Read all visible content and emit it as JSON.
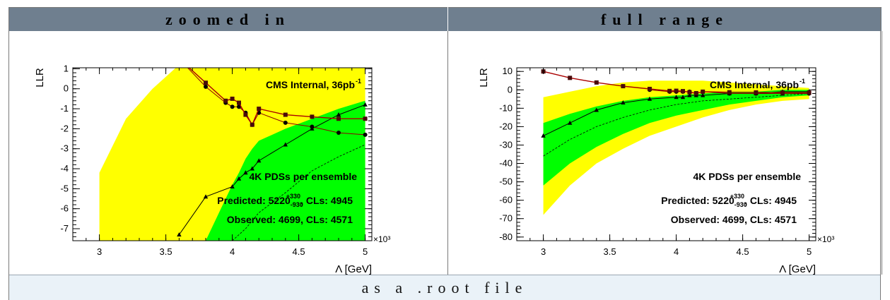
{
  "headers": {
    "left": "zoomed in",
    "right": "full range"
  },
  "footer": {
    "label": "as a .root file"
  },
  "colors": {
    "yellow": "#ffff00",
    "green": "#00ff00",
    "observed": "#aa0000",
    "marker": "#000000"
  },
  "chart_data": [
    {
      "type": "line",
      "panel": "zoomed in",
      "ylabel": "LLR",
      "xlabel": "Λ [GeV]",
      "x_multiplier": "×10³",
      "xlim": [
        2.8,
        5.05
      ],
      "ylim": [
        -7.6,
        1.05
      ],
      "x_ticks": [
        3,
        3.5,
        4,
        4.5,
        5
      ],
      "y_ticks": [
        1,
        0,
        -1,
        -2,
        -3,
        -4,
        -5,
        -6,
        -7
      ],
      "annotations": {
        "label": "CMS Internal, 36pb",
        "superscript": "-1",
        "ensemble": "4K PDSs per ensemble",
        "predicted_prefix": "Predicted: 5220",
        "predicted_up": "+330",
        "predicted_down": "-930",
        "predicted_suffix": ", CLs: 4945",
        "observed": "Observed: 4699, CLs: 4571"
      },
      "x": [
        3.0,
        3.2,
        3.4,
        3.6,
        3.8,
        3.95,
        4.0,
        4.05,
        4.1,
        4.15,
        4.2,
        4.4,
        4.6,
        4.8,
        5.0
      ],
      "series": [
        {
          "role": "band_yellow",
          "lower": [
            -7.6,
            -7.6,
            -7.6,
            -7.6,
            -7.6,
            -7.6,
            -7.6,
            -7.6,
            -7.6,
            -7.6,
            -7.6,
            -7.6,
            -7.6,
            -7.6,
            -7.6
          ],
          "upper": [
            -4.2,
            -1.5,
            0.0,
            1.2,
            1.2,
            1.2,
            1.2,
            1.2,
            1.2,
            1.2,
            1.2,
            1.2,
            1.2,
            1.2,
            1.2
          ]
        },
        {
          "role": "band_green",
          "lower": [
            -7.6,
            -7.6,
            -7.6,
            -7.6,
            -7.6,
            -7.6,
            -7.6,
            -7.6,
            -7.6,
            -7.6,
            -7.6,
            -7.6,
            -7.6,
            -7.6,
            -7.6
          ],
          "upper": [
            -7.6,
            -7.6,
            -7.6,
            -7.6,
            -7.6,
            -5.5,
            -4.8,
            -4.2,
            -3.5,
            -3.0,
            -2.6,
            -2.0,
            -1.5,
            -1.0,
            -0.6
          ]
        },
        {
          "role": "expected_dashed",
          "values": [
            null,
            null,
            null,
            null,
            null,
            null,
            -7.6,
            -7.3,
            -7.0,
            -6.6,
            -6.2,
            -5.2,
            -4.1,
            -3.4,
            -2.8
          ]
        },
        {
          "role": "triangle",
          "x": [
            3.6,
            3.8,
            4.0,
            4.05,
            4.1,
            4.15,
            4.2,
            4.4,
            4.6,
            4.8,
            5.0
          ],
          "values": [
            -7.3,
            -5.4,
            -4.9,
            -4.5,
            -4.2,
            -4.0,
            -3.6,
            -2.8,
            -2.0,
            -1.3,
            -0.8
          ]
        },
        {
          "role": "circle",
          "x": [
            3.6,
            3.8,
            3.95,
            4.0,
            4.05,
            4.1,
            4.15,
            4.2,
            4.4,
            4.6,
            4.8,
            5.0
          ],
          "values": [
            1.5,
            0.1,
            -0.7,
            -0.9,
            -0.9,
            -1.2,
            -1.8,
            -1.2,
            -1.7,
            -1.9,
            -2.2,
            -2.3
          ]
        },
        {
          "role": "observed_square",
          "x": [
            3.6,
            3.8,
            3.95,
            4.0,
            4.05,
            4.1,
            4.15,
            4.2,
            4.4,
            4.6,
            4.8,
            5.0
          ],
          "values": [
            1.5,
            0.3,
            -0.6,
            -0.5,
            -0.7,
            -1.3,
            -1.8,
            -1.0,
            -1.3,
            -1.4,
            -1.5,
            -1.5
          ]
        }
      ]
    },
    {
      "type": "line",
      "panel": "full range",
      "ylabel": "LLR",
      "xlabel": "Λ [GeV]",
      "x_multiplier": "×10³",
      "xlim": [
        2.8,
        5.05
      ],
      "ylim": [
        -82,
        12
      ],
      "x_ticks": [
        3,
        3.5,
        4,
        4.5,
        5
      ],
      "y_ticks": [
        10,
        0,
        -10,
        -20,
        -30,
        -40,
        -50,
        -60,
        -70,
        -80
      ],
      "annotations": {
        "label": "CMS Internal, 36pb",
        "superscript": "-1",
        "ensemble": "4K PDSs per ensemble",
        "predicted_prefix": "Predicted: 5220",
        "predicted_up": "+330",
        "predicted_down": "-930",
        "predicted_suffix": ", CLs: 4945",
        "observed": "Observed: 4699, CLs: 4571"
      },
      "x": [
        3.0,
        3.2,
        3.4,
        3.6,
        3.8,
        4.0,
        4.2,
        4.4,
        4.6,
        4.8,
        5.0
      ],
      "series": [
        {
          "role": "band_yellow",
          "lower": [
            -68,
            -52,
            -40,
            -32,
            -25,
            -20,
            -15,
            -11,
            -8,
            -6,
            -5
          ],
          "upper": [
            -4,
            -1,
            2,
            4,
            5,
            5,
            5,
            4,
            3,
            2,
            1
          ]
        },
        {
          "role": "band_green",
          "lower": [
            -52,
            -40,
            -31,
            -24,
            -18,
            -14,
            -11,
            -8,
            -6,
            -4,
            -3
          ],
          "upper": [
            -18,
            -13,
            -9,
            -6,
            -4,
            -3,
            -2,
            -1,
            -1,
            0,
            0
          ]
        },
        {
          "role": "expected_dashed",
          "values": [
            -36,
            -27,
            -20,
            -15,
            -11,
            -8,
            -6,
            -5,
            -4,
            -3,
            -2
          ]
        },
        {
          "role": "triangle",
          "x": [
            3.0,
            3.2,
            3.4,
            3.6,
            3.8,
            4.0,
            4.05,
            4.1,
            4.15,
            4.2,
            4.4,
            4.6,
            4.8,
            5.0
          ],
          "values": [
            -25,
            -18,
            -11,
            -7,
            -5,
            -4,
            -4,
            -3,
            -3,
            -3,
            -2,
            -2,
            -1,
            -1
          ]
        },
        {
          "role": "circle",
          "x": [
            3.8,
            3.95,
            4.0,
            4.05,
            4.1,
            4.15,
            4.2,
            4.4,
            4.6,
            4.8,
            5.0
          ],
          "values": [
            0,
            -1,
            -1,
            -1,
            -1,
            -2,
            -1,
            -2,
            -2,
            -2,
            -2
          ]
        },
        {
          "role": "observed_square",
          "x": [
            3.0,
            3.2,
            3.4,
            3.6,
            3.8,
            3.95,
            4.0,
            4.05,
            4.1,
            4.15,
            4.2,
            4.4,
            4.6,
            4.8,
            5.0
          ],
          "values": [
            10,
            6.5,
            4,
            2,
            0.5,
            -0.6,
            -0.5,
            -0.7,
            -1.3,
            -1.8,
            -1,
            -1.3,
            -1.4,
            -1.5,
            -1.5
          ]
        }
      ]
    }
  ]
}
